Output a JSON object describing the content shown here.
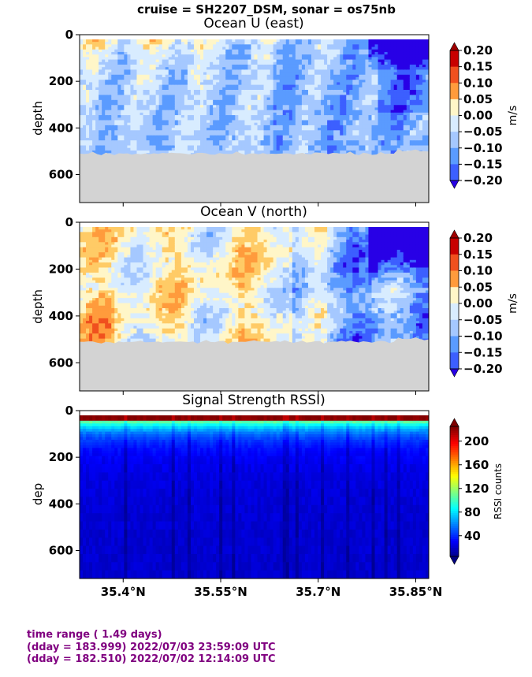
{
  "figure_title": "cruise = SH2207_DSM,  sonar = os75nb",
  "footer": {
    "line1": "time range ( 1.49 days)",
    "line2": "(dday = 183.999) 2022/07/03 23:59:09 UTC",
    "line3": "(dday = 182.510) 2022/07/02 12:14:09 UTC"
  },
  "colors": {
    "seafloor": "#d3d3d3",
    "footer_text": "#800080"
  },
  "chart_data": [
    {
      "type": "heatmap",
      "title": "Ocean U (east)",
      "ylabel": "depth",
      "ylim": [
        720,
        0
      ],
      "yticks": [
        0,
        200,
        400,
        600
      ],
      "xlim": [
        35.333,
        35.87
      ],
      "colorbar": {
        "label": "m/s",
        "ticks": [
          "0.20",
          "0.15",
          "0.10",
          "0.05",
          "0.00",
          "−0.05",
          "−0.10",
          "−0.15",
          "−0.20"
        ],
        "range": [
          -0.2,
          0.2
        ],
        "extend": "both",
        "colormap": "jet-diverging-white-center"
      },
      "seafloor_depth_m": 510,
      "pattern": "positive eastward flow near surface in west (~0.1-0.15 m/s), weak mixed values below, strong westward flow (~ -0.2 m/s) in upper 100 m near 35.83-35.86°N"
    },
    {
      "type": "heatmap",
      "title": "Ocean V (north)",
      "ylabel": "depth",
      "ylim": [
        720,
        0
      ],
      "yticks": [
        0,
        200,
        400,
        600
      ],
      "xlim": [
        35.333,
        35.87
      ],
      "colorbar": {
        "label": "m/s",
        "ticks": [
          "0.20",
          "0.15",
          "0.10",
          "0.05",
          "0.00",
          "−0.05",
          "−0.10",
          "−0.15",
          "−0.20"
        ],
        "range": [
          -0.2,
          0.2
        ],
        "extend": "both",
        "colormap": "jet-diverging-white-center"
      },
      "seafloor_depth_m": 510,
      "pattern": "northward flow ~0.05-0.15 m/s across western two-thirds, southward flow up to -0.2 m/s in upper 250 m east of 35.8°N"
    },
    {
      "type": "heatmap",
      "title": "Signal Strength RSSI)",
      "ylabel": "dep",
      "ylim": [
        720,
        0
      ],
      "yticks": [
        0,
        200,
        400,
        600
      ],
      "xlim": [
        35.333,
        35.87
      ],
      "xticks": [
        "35.4°N",
        "35.55°N",
        "35.7°N",
        "35.85°N"
      ],
      "xtick_values": [
        35.4,
        35.55,
        35.7,
        35.85
      ],
      "colorbar": {
        "label": "RSSI counts",
        "ticks": [
          "200",
          "160",
          "120",
          "80",
          "40"
        ],
        "tick_values": [
          200,
          160,
          120,
          80,
          40
        ],
        "range": [
          5,
          225
        ],
        "extend": "both",
        "colormap": "jet"
      },
      "pattern": "high RSSI ~200 at surface decreasing rapidly to ~50 by 150 m and ~25 below 350 m, with darker vertical streaks"
    }
  ]
}
